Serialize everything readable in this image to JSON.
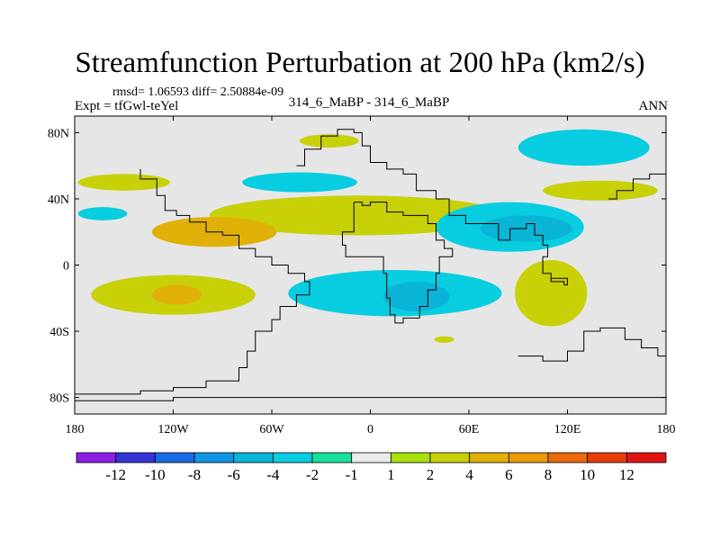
{
  "header": {
    "title": "Streamfunction Perturbation at 200 hPa (km2/s)",
    "stats": "rmsd= 1.06593 diff= 2.50884e-09",
    "experiment": "Expt = tfGwl-teYel",
    "comparison": "314_6_MaBP - 314_6_MaBP",
    "season": "ANN"
  },
  "map": {
    "projection": "cylindrical-equidistant",
    "lon_range": [
      -180,
      180
    ],
    "lat_range": [
      -90,
      90
    ],
    "background_color": "#e6e6e6",
    "lat_ticks": [
      {
        "value": 80,
        "label": "80N"
      },
      {
        "value": 40,
        "label": "40N"
      },
      {
        "value": 0,
        "label": "0"
      },
      {
        "value": -40,
        "label": "40S"
      },
      {
        "value": -80,
        "label": "80S"
      }
    ],
    "lon_ticks": [
      {
        "value": -180,
        "label": "180"
      },
      {
        "value": -120,
        "label": "120W"
      },
      {
        "value": -60,
        "label": "60W"
      },
      {
        "value": 0,
        "label": "0"
      },
      {
        "value": 60,
        "label": "60E"
      },
      {
        "value": 120,
        "label": "120E"
      },
      {
        "value": 180,
        "label": "180"
      }
    ],
    "anomaly_regions": [
      {
        "level": 2,
        "lon": -8,
        "lat": 30,
        "rlon": 90,
        "rlat": 12
      },
      {
        "level": 4,
        "lon": -95,
        "lat": 20,
        "rlon": 38,
        "rlat": 9
      },
      {
        "level": -2,
        "lon": 85,
        "lat": 23,
        "rlon": 45,
        "rlat": 15
      },
      {
        "level": -4,
        "lon": 95,
        "lat": 22,
        "rlon": 28,
        "rlat": 8
      },
      {
        "level": -2,
        "lon": 15,
        "lat": -17,
        "rlon": 65,
        "rlat": 14
      },
      {
        "level": -4,
        "lon": 28,
        "lat": -19,
        "rlon": 20,
        "rlat": 9
      },
      {
        "level": 2,
        "lon": -120,
        "lat": -18,
        "rlon": 50,
        "rlat": 12
      },
      {
        "level": 4,
        "lon": -118,
        "lat": -18,
        "rlon": 15,
        "rlat": 6
      },
      {
        "level": 2,
        "lon": 110,
        "lat": -17,
        "rlon": 22,
        "rlat": 20
      },
      {
        "level": -2,
        "lon": 130,
        "lat": 71,
        "rlon": 40,
        "rlat": 11
      },
      {
        "level": 2,
        "lon": -150,
        "lat": 50,
        "rlon": 28,
        "rlat": 5
      },
      {
        "level": -2,
        "lon": -43,
        "lat": 50,
        "rlon": 35,
        "rlat": 6
      },
      {
        "level": 2,
        "lon": -25,
        "lat": 75,
        "rlon": 18,
        "rlat": 4
      },
      {
        "level": 2,
        "lon": 140,
        "lat": 45,
        "rlon": 35,
        "rlat": 6
      },
      {
        "level": -2,
        "lon": -163,
        "lat": 31,
        "rlon": 15,
        "rlat": 4
      },
      {
        "level": 2,
        "lon": 45,
        "lat": -45,
        "rlon": 6,
        "rlat": 2
      }
    ],
    "coastlines": [
      [
        [
          -180,
          -78
        ],
        [
          -160,
          -78
        ],
        [
          -140,
          -76
        ],
        [
          -120,
          -74
        ],
        [
          -100,
          -70
        ],
        [
          -80,
          -62
        ],
        [
          -75,
          -52
        ],
        [
          -70,
          -40
        ],
        [
          -60,
          -33
        ],
        [
          -55,
          -25
        ],
        [
          -45,
          -18
        ],
        [
          -37,
          -10
        ],
        [
          -40,
          -5
        ],
        [
          -50,
          0
        ],
        [
          -60,
          5
        ],
        [
          -70,
          10
        ],
        [
          -80,
          18
        ],
        [
          -90,
          20
        ],
        [
          -100,
          26
        ],
        [
          -110,
          30
        ],
        [
          -118,
          33
        ],
        [
          -125,
          42
        ],
        [
          -130,
          52
        ],
        [
          -140,
          58
        ]
      ],
      [
        [
          -45,
          60
        ],
        [
          -40,
          70
        ],
        [
          -30,
          78
        ],
        [
          -20,
          82
        ],
        [
          -10,
          80
        ],
        [
          -5,
          72
        ],
        [
          0,
          62
        ],
        [
          10,
          58
        ],
        [
          20,
          55
        ],
        [
          28,
          45
        ],
        [
          40,
          40
        ],
        [
          48,
          30
        ],
        [
          58,
          25
        ],
        [
          70,
          25
        ],
        [
          78,
          15
        ],
        [
          85,
          22
        ],
        [
          95,
          25
        ],
        [
          100,
          18
        ],
        [
          105,
          12
        ],
        [
          108,
          5
        ],
        [
          105,
          -5
        ],
        [
          110,
          -10
        ],
        [
          118,
          -12
        ],
        [
          120,
          -8
        ],
        [
          110,
          -5
        ],
        [
          105,
          0
        ]
      ],
      [
        [
          -10,
          38
        ],
        [
          -5,
          36
        ],
        [
          0,
          38
        ],
        [
          10,
          38
        ],
        [
          10,
          32
        ],
        [
          20,
          30
        ],
        [
          30,
          30
        ],
        [
          35,
          25
        ],
        [
          40,
          15
        ],
        [
          45,
          10
        ],
        [
          50,
          5
        ],
        [
          42,
          -5
        ],
        [
          40,
          -15
        ],
        [
          35,
          -25
        ],
        [
          30,
          -32
        ],
        [
          20,
          -35
        ],
        [
          15,
          -30
        ],
        [
          12,
          -20
        ],
        [
          10,
          -5
        ],
        [
          8,
          5
        ],
        [
          -5,
          5
        ],
        [
          -15,
          12
        ],
        [
          -17,
          20
        ],
        [
          -10,
          30
        ],
        [
          -10,
          38
        ]
      ],
      [
        [
          90,
          -55
        ],
        [
          105,
          -58
        ],
        [
          120,
          -52
        ],
        [
          130,
          -40
        ],
        [
          140,
          -38
        ],
        [
          155,
          -45
        ],
        [
          165,
          -50
        ],
        [
          175,
          -55
        ],
        [
          180,
          -78
        ]
      ],
      [
        [
          -180,
          -82
        ],
        [
          -120,
          -80
        ],
        [
          -60,
          -80
        ],
        [
          0,
          -80
        ],
        [
          60,
          -80
        ],
        [
          120,
          -80
        ],
        [
          180,
          -82
        ]
      ],
      [
        [
          145,
          40
        ],
        [
          150,
          45
        ],
        [
          160,
          52
        ],
        [
          170,
          55
        ],
        [
          180,
          60
        ]
      ]
    ]
  },
  "colorbar": {
    "colors": [
      "#8b1fe6",
      "#3434d6",
      "#1a6be6",
      "#0f96e6",
      "#0ab4d6",
      "#08cde0",
      "#16e09a",
      "#ebebeb",
      "#a8e010",
      "#c8d008",
      "#e0b008",
      "#e89a08",
      "#e86a0a",
      "#e83e0a",
      "#e01414"
    ],
    "labels": [
      "-12",
      "-10",
      "-8",
      "-6",
      "-4",
      "-2",
      "-1",
      "1",
      "2",
      "4",
      "6",
      "8",
      "10",
      "12"
    ]
  }
}
